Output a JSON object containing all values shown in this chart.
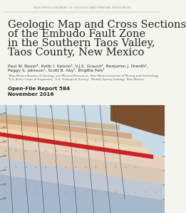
{
  "header": "NEW MEXICO BUREAU OF GEOLOGY AND MINERAL RESOURCES",
  "title_line1": "Geologic Map and Cross Sections",
  "title_line2": "of the Embudo Fault Zone",
  "title_line3": "in the Southern Taos Valley,",
  "title_line4": "Taos County, New Mexico",
  "authors_line1": "Paul W. Bauer¹, Keith I. Kelson¹, V.J.S. Grauch¹, Benjamin J. Drenth¹,",
  "authors_line2": "Peggy S. Johnson¹, Scott B. Aby¹, Brigitte Fels¹",
  "footnote1": "¹New Mexico Bureau of Geology and Mineral Resources, New Mexico Institute of Mining and Technology.",
  "footnote2": "²U.S. Army Corps of Engineers; ³U.S. Geological Survey; ⁴Muddy Spring Geology, New Mexico.",
  "report_line1": "Open-File Report 584",
  "report_line2": "November 2016",
  "bg_color": "#f5f5f0",
  "header_color": "#999990",
  "title_color": "#222222",
  "authors_color": "#333333",
  "footnote_color": "#666666",
  "report_color": "#222222",
  "map_colors": {
    "sky": "#c8dce8",
    "layer1": "#c8b89a",
    "layer2": "#d4a882",
    "layer3": "#e8c8a0",
    "layer4": "#f0d8b0",
    "layer5": "#e8d0c0",
    "layer6": "#d8c8b8",
    "layer7": "#c0c8d4",
    "layer8": "#a8b8cc",
    "red_stripe": "#cc2222",
    "dark_brown": "#7a5030",
    "fault_color": "#554433"
  }
}
